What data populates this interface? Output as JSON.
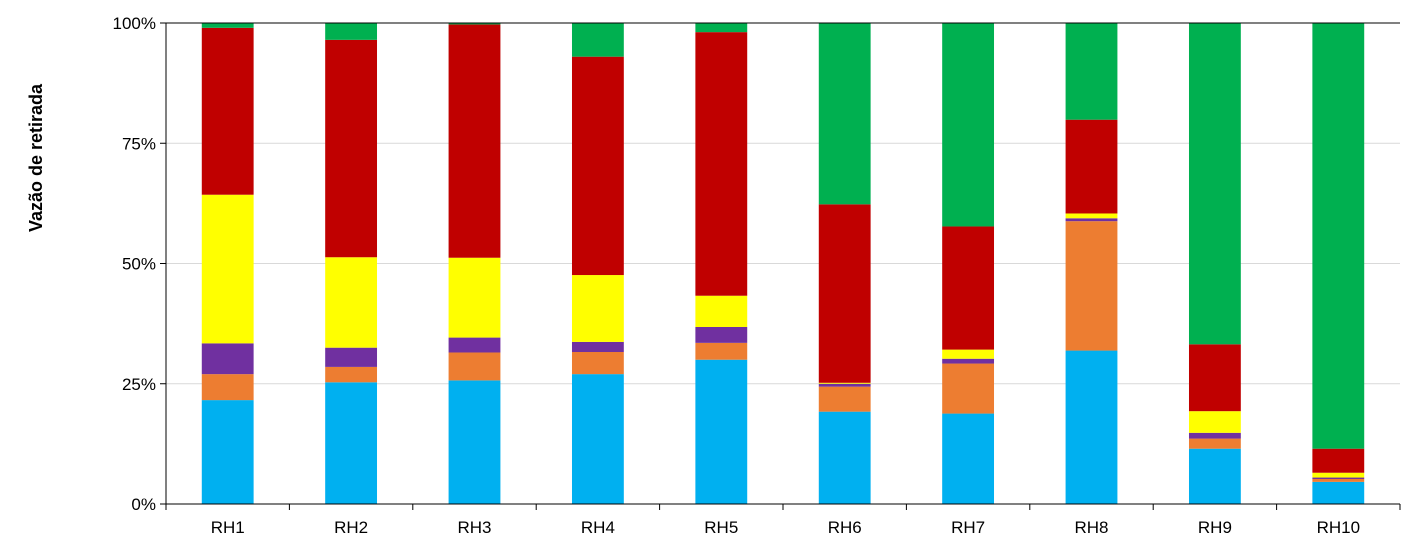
{
  "chart_data": {
    "type": "bar",
    "stacked": true,
    "percent_stacked": true,
    "title": "",
    "xlabel": "",
    "ylabel": "Vazão de retirada",
    "ylim": [
      0,
      100
    ],
    "yticks": [
      0,
      25,
      50,
      75,
      100
    ],
    "ytick_labels": [
      "0%",
      "25%",
      "50%",
      "75%",
      "100%"
    ],
    "grid": "horizontal",
    "legend": "none",
    "categories": [
      "RH1",
      "RH2",
      "RH3",
      "RH4",
      "RH5",
      "RH6",
      "RH7",
      "RH8",
      "RH9",
      "RH10"
    ],
    "series": [
      {
        "color": "#00b0f0",
        "values": [
          21.6,
          25.3,
          25.7,
          27.0,
          30.0,
          19.2,
          18.8,
          31.9,
          11.5,
          4.6
        ]
      },
      {
        "color": "#ed7d31",
        "values": [
          5.4,
          3.2,
          5.8,
          4.6,
          3.5,
          5.2,
          10.4,
          26.9,
          2.1,
          0.6
        ]
      },
      {
        "color": "#7030a0",
        "values": [
          6.4,
          4.0,
          3.1,
          2.1,
          3.3,
          0.6,
          1.0,
          0.6,
          1.2,
          0.3
        ]
      },
      {
        "color": "#ffff00",
        "values": [
          30.9,
          18.8,
          16.6,
          13.9,
          6.5,
          0.2,
          1.9,
          1.0,
          4.5,
          1.0
        ]
      },
      {
        "color": "#c00000",
        "values": [
          34.7,
          45.2,
          48.5,
          45.4,
          54.8,
          37.1,
          25.6,
          19.5,
          13.9,
          5.0
        ]
      },
      {
        "color": "#00b050",
        "values": [
          1.0,
          3.5,
          0.3,
          7.0,
          1.9,
          37.7,
          42.3,
          20.1,
          66.8,
          88.5
        ]
      }
    ]
  }
}
